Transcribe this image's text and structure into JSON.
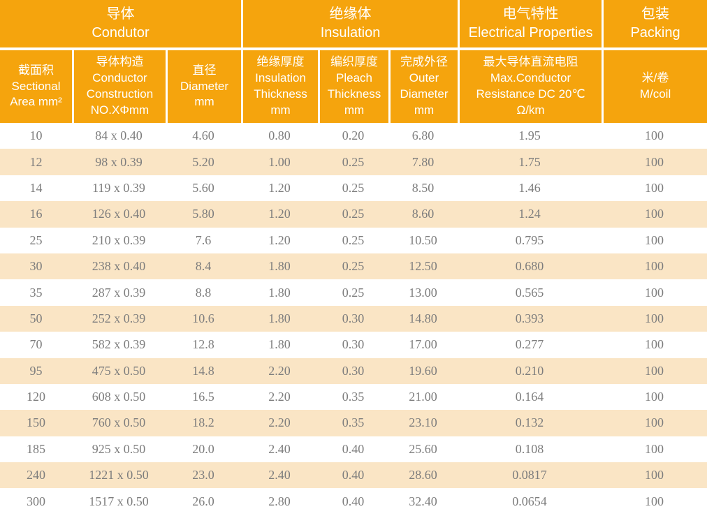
{
  "colors": {
    "header_bg": "#F5A40D",
    "stripe_bg": "#FAE5C5",
    "header_text": "#FFFFFF",
    "body_text": "#7D7D7D",
    "divider": "#FFFFFF",
    "row_bg": "#FFFFFF"
  },
  "table": {
    "groups": [
      {
        "label": "导体\nCondutor",
        "span": 3
      },
      {
        "label": "绝缘体\nInsulation",
        "span": 3
      },
      {
        "label": "电气特性\nElectrical Properties",
        "span": 1
      },
      {
        "label": "包装\nPacking",
        "span": 1
      }
    ],
    "columns": [
      {
        "label": "截面积\nSectional\nArea mm²"
      },
      {
        "label": "导体构造\nConductor\nConstruction\nNO.XΦmm"
      },
      {
        "label": "直径\nDiameter\nmm"
      },
      {
        "label": "绝缘厚度\nInsulation\nThickness\nmm"
      },
      {
        "label": "编织厚度\nPleach\nThickness\nmm"
      },
      {
        "label": "完成外径\nOuter\nDiameter\nmm"
      },
      {
        "label": "最大导体直流电阻\nMax.Conductor\nResistance DC 20℃\nΩ/km"
      },
      {
        "label": "米/卷\nM/coil"
      }
    ],
    "rows": [
      [
        "10",
        "84 x 0.40",
        "4.60",
        "0.80",
        "0.20",
        "6.80",
        "1.95",
        "100"
      ],
      [
        "12",
        "98 x 0.39",
        "5.20",
        "1.00",
        "0.25",
        "7.80",
        "1.75",
        "100"
      ],
      [
        "14",
        "119 x 0.39",
        "5.60",
        "1.20",
        "0.25",
        "8.50",
        "1.46",
        "100"
      ],
      [
        "16",
        "126 x 0.40",
        "5.80",
        "1.20",
        "0.25",
        "8.60",
        "1.24",
        "100"
      ],
      [
        "25",
        "210 x 0.39",
        "7.6",
        "1.20",
        "0.25",
        "10.50",
        "0.795",
        "100"
      ],
      [
        "30",
        "238 x 0.40",
        "8.4",
        "1.80",
        "0.25",
        "12.50",
        "0.680",
        "100"
      ],
      [
        "35",
        "287 x 0.39",
        "8.8",
        "1.80",
        "0.25",
        "13.00",
        "0.565",
        "100"
      ],
      [
        "50",
        "252 x 0.39",
        "10.6",
        "1.80",
        "0.30",
        "14.80",
        "0.393",
        "100"
      ],
      [
        "70",
        "582 x 0.39",
        "12.8",
        "1.80",
        "0.30",
        "17.00",
        "0.277",
        "100"
      ],
      [
        "95",
        "475 x 0.50",
        "14.8",
        "2.20",
        "0.30",
        "19.60",
        "0.210",
        "100"
      ],
      [
        "120",
        "608 x 0.50",
        "16.5",
        "2.20",
        "0.35",
        "21.00",
        "0.164",
        "100"
      ],
      [
        "150",
        "760 x 0.50",
        "18.2",
        "2.20",
        "0.35",
        "23.10",
        "0.132",
        "100"
      ],
      [
        "185",
        "925 x 0.50",
        "20.0",
        "2.40",
        "0.40",
        "25.60",
        "0.108",
        "100"
      ],
      [
        "240",
        "1221 x 0.50",
        "23.0",
        "2.40",
        "0.40",
        "28.60",
        "0.0817",
        "100"
      ],
      [
        "300",
        "1517 x 0.50",
        "26.0",
        "2.80",
        "0.40",
        "32.40",
        "0.0654",
        "100"
      ]
    ]
  }
}
